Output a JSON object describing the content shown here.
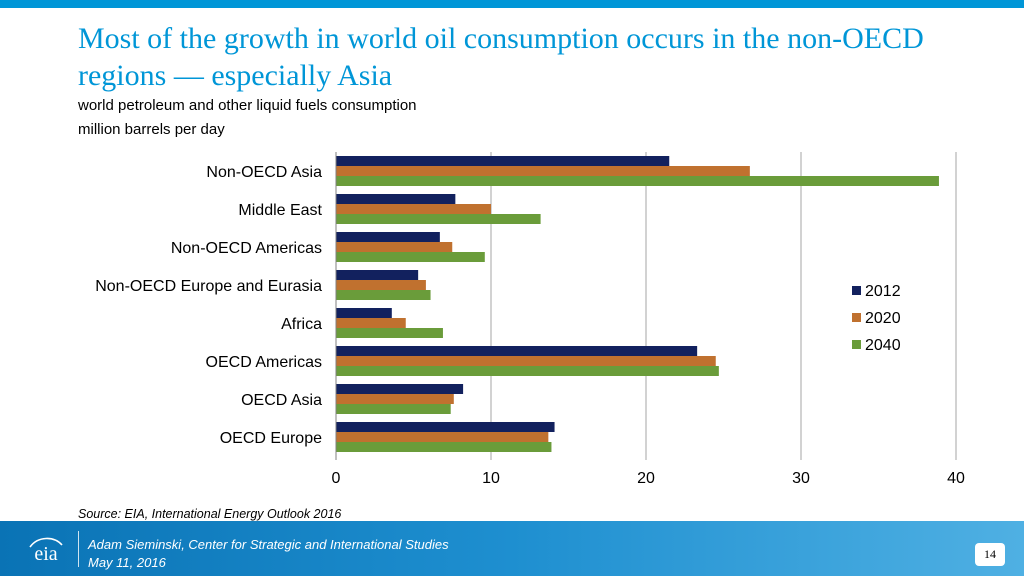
{
  "header": {
    "title": "Most of the growth in world oil consumption occurs in the non-OECD regions — especially Asia",
    "subtitle_line1": "world petroleum and other liquid fuels consumption",
    "subtitle_line2": "million barrels per day"
  },
  "source": "Source:  EIA, International Energy Outlook 2016",
  "footer": {
    "logo_text": "eia",
    "presenter": "Adam Sieminski, Center for Strategic and International Studies",
    "date": "May 11, 2016",
    "page_number": "14"
  },
  "colors": {
    "accent": "#0096d7",
    "series_2012": "#12215e",
    "series_2020": "#c0712f",
    "series_2040": "#6a9c3a",
    "grid": "#a6a6a6"
  },
  "chart_data": {
    "type": "bar",
    "orientation": "horizontal",
    "title": "",
    "xlabel": "",
    "ylabel": "",
    "xlim": [
      0,
      40
    ],
    "xticks": [
      0,
      10,
      20,
      30,
      40
    ],
    "grid": true,
    "legend_position": "right",
    "categories": [
      "Non-OECD Asia",
      "Middle East",
      "Non-OECD Americas",
      "Non-OECD Europe and Eurasia",
      "Africa",
      "OECD Americas",
      "OECD Asia",
      "OECD Europe"
    ],
    "series": [
      {
        "name": "2012",
        "color": "#12215e",
        "values": [
          21.5,
          7.7,
          6.7,
          5.3,
          3.6,
          23.3,
          8.2,
          14.1
        ]
      },
      {
        "name": "2020",
        "color": "#c0712f",
        "values": [
          26.7,
          10.0,
          7.5,
          5.8,
          4.5,
          24.5,
          7.6,
          13.7
        ]
      },
      {
        "name": "2040",
        "color": "#6a9c3a",
        "values": [
          38.9,
          13.2,
          9.6,
          6.1,
          6.9,
          24.7,
          7.4,
          13.9
        ]
      }
    ]
  }
}
